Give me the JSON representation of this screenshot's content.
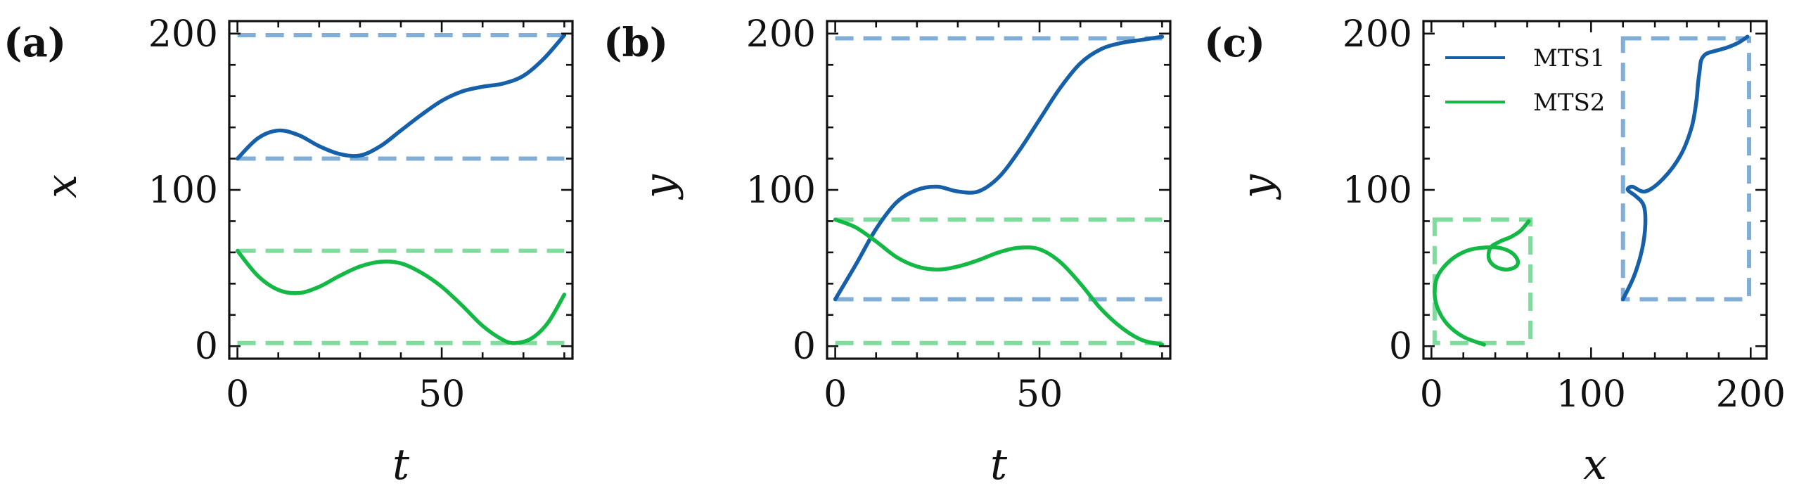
{
  "colors": {
    "mts1": "#1560a8",
    "mts2": "#13b845",
    "mts1_bound": "#80aed6",
    "mts2_bound": "#7fdc9c",
    "axis": "#111111"
  },
  "chart_data": [
    {
      "type": "line",
      "panel_label": "(a)",
      "xlabel": "t",
      "ylabel": "x",
      "xlim": [
        -2,
        82
      ],
      "ylim": [
        -8,
        208
      ],
      "xticks": [
        0,
        50
      ],
      "yticks": [
        0,
        100,
        200
      ],
      "x_minor_step": 10,
      "y_minor_step": 20,
      "series": [
        {
          "key": "mts1",
          "x": [
            0,
            5,
            10,
            15,
            20,
            25,
            30,
            35,
            40,
            45,
            50,
            55,
            60,
            65,
            70,
            75,
            80
          ],
          "y": [
            120,
            133,
            138,
            135,
            128,
            123,
            122,
            128,
            138,
            148,
            157,
            163,
            166,
            168,
            173,
            184,
            199
          ]
        },
        {
          "key": "mts2",
          "x": [
            0,
            5,
            10,
            15,
            20,
            25,
            30,
            35,
            40,
            45,
            50,
            55,
            60,
            65,
            68,
            72,
            76,
            80
          ],
          "y": [
            61,
            45,
            36,
            34,
            38,
            45,
            51,
            54,
            53,
            47,
            38,
            26,
            13,
            4,
            2,
            5,
            15,
            33
          ]
        }
      ],
      "bounds": [
        {
          "key": "mts1",
          "y": [
            120,
            199
          ]
        },
        {
          "key": "mts2",
          "y": [
            2,
            61
          ]
        }
      ]
    },
    {
      "type": "line",
      "panel_label": "(b)",
      "xlabel": "t",
      "ylabel": "y",
      "xlim": [
        -2,
        82
      ],
      "ylim": [
        -8,
        208
      ],
      "xticks": [
        0,
        50
      ],
      "yticks": [
        0,
        100,
        200
      ],
      "x_minor_step": 10,
      "y_minor_step": 20,
      "series": [
        {
          "key": "mts1",
          "x": [
            0,
            5,
            10,
            15,
            20,
            25,
            30,
            35,
            40,
            45,
            50,
            55,
            60,
            65,
            70,
            75,
            80
          ],
          "y": [
            30,
            52,
            75,
            92,
            100,
            102,
            99,
            99,
            108,
            125,
            145,
            165,
            181,
            190,
            194,
            196,
            198
          ]
        },
        {
          "key": "mts2",
          "x": [
            0,
            5,
            10,
            15,
            20,
            25,
            30,
            35,
            40,
            45,
            50,
            55,
            60,
            65,
            70,
            75,
            80
          ],
          "y": [
            81,
            76,
            67,
            57,
            51,
            49,
            51,
            55,
            60,
            63,
            62,
            54,
            40,
            24,
            12,
            4,
            1
          ]
        }
      ],
      "bounds": [
        {
          "key": "mts1",
          "y": [
            30,
            197
          ]
        },
        {
          "key": "mts2",
          "y": [
            2,
            81
          ]
        }
      ]
    },
    {
      "type": "line",
      "panel_label": "(c)",
      "xlabel": "x",
      "ylabel": "y",
      "xlim": [
        -5,
        210
      ],
      "ylim": [
        -8,
        208
      ],
      "xticks": [
        0,
        100,
        200
      ],
      "yticks": [
        0,
        100,
        200
      ],
      "x_minor_step": 20,
      "y_minor_step": 20,
      "legend_position": "top-left",
      "series": [
        {
          "key": "mts1",
          "name": "MTS1",
          "x": [
            120,
            127,
            132,
            134,
            133,
            128,
            123,
            126,
            134,
            145,
            156,
            163,
            166,
            167,
            168,
            169,
            172,
            178,
            185,
            192,
            198
          ],
          "y": [
            30,
            45,
            62,
            78,
            90,
            96,
            100,
            102,
            99,
            107,
            122,
            140,
            157,
            168,
            176,
            183,
            187,
            189,
            191,
            194,
            198
          ]
        },
        {
          "key": "mts2",
          "name": "MTS2",
          "x": [
            33,
            20,
            10,
            4,
            2,
            4,
            12,
            22,
            32,
            42,
            50,
            54,
            53,
            47,
            40,
            36,
            37,
            43,
            50,
            56,
            61
          ],
          "y": [
            1,
            6,
            14,
            24,
            34,
            45,
            55,
            61,
            63,
            63,
            60,
            55,
            51,
            49,
            51,
            56,
            63,
            67,
            70,
            74,
            80
          ]
        }
      ],
      "bounds": [
        {
          "key": "mts1",
          "x": [
            120,
            199
          ],
          "y": [
            30,
            197
          ]
        },
        {
          "key": "mts2",
          "x": [
            2,
            62
          ],
          "y": [
            2,
            81
          ]
        }
      ]
    }
  ]
}
